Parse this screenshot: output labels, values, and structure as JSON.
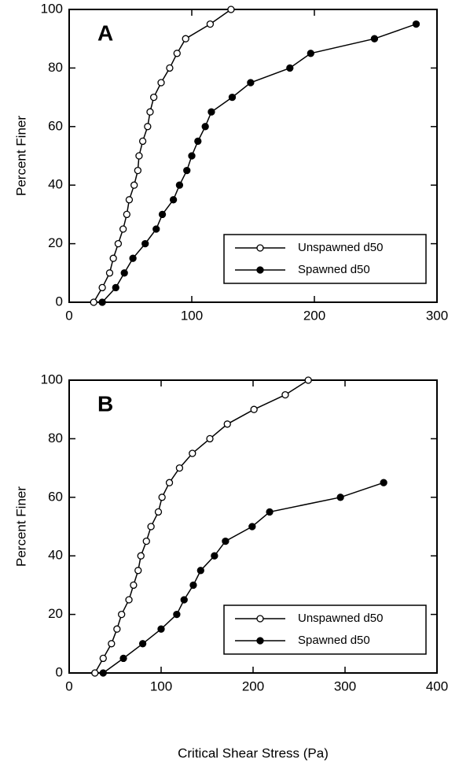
{
  "chart_data": [
    {
      "type": "line",
      "panel_label": "A",
      "ylabel": "Percent Finer",
      "xlim": [
        0,
        300
      ],
      "ylim": [
        0,
        100
      ],
      "xticks": [
        0,
        100,
        200,
        300
      ],
      "yticks": [
        0,
        20,
        40,
        60,
        80,
        100
      ],
      "series": [
        {
          "name": "Unspawned d50",
          "color": "#000000",
          "marker_fill": "#ffffff",
          "x": [
            20,
            27,
            33,
            36,
            40,
            44,
            47,
            49,
            53,
            56,
            57,
            60,
            64,
            66,
            69,
            75,
            82,
            88,
            95,
            115,
            132
          ],
          "values": [
            0,
            5,
            10,
            15,
            20,
            25,
            30,
            35,
            40,
            45,
            50,
            55,
            60,
            65,
            70,
            75,
            80,
            85,
            90,
            95,
            100
          ]
        },
        {
          "name": "Spawned d50",
          "color": "#000000",
          "marker_fill": "#000000",
          "x": [
            27,
            38,
            45,
            52,
            62,
            71,
            76,
            85,
            90,
            96,
            100,
            105,
            111,
            116,
            133,
            148,
            180,
            197,
            249,
            283
          ],
          "values": [
            0,
            5,
            10,
            15,
            20,
            25,
            30,
            35,
            40,
            45,
            50,
            55,
            60,
            65,
            70,
            75,
            80,
            85,
            90,
            95
          ]
        }
      ]
    },
    {
      "type": "line",
      "panel_label": "B",
      "ylabel": "Percent Finer",
      "xlabel": "Critical Shear Stress (Pa)",
      "xlim": [
        0,
        400
      ],
      "ylim": [
        0,
        100
      ],
      "xticks": [
        0,
        100,
        200,
        300,
        400
      ],
      "yticks": [
        0,
        20,
        40,
        60,
        80,
        100
      ],
      "series": [
        {
          "name": "Unspawned d50",
          "color": "#000000",
          "marker_fill": "#ffffff",
          "x": [
            28,
            37,
            46,
            52,
            57,
            65,
            70,
            75,
            78,
            84,
            89,
            97,
            101,
            109,
            120,
            134,
            153,
            172,
            201,
            235,
            260
          ],
          "values": [
            0,
            5,
            10,
            15,
            20,
            25,
            30,
            35,
            40,
            45,
            50,
            55,
            60,
            65,
            70,
            75,
            80,
            85,
            90,
            95,
            100
          ]
        },
        {
          "name": "Spawned d50",
          "color": "#000000",
          "marker_fill": "#000000",
          "x": [
            37,
            59,
            80,
            100,
            117,
            125,
            135,
            143,
            158,
            170,
            199,
            218,
            295,
            342
          ],
          "values": [
            0,
            5,
            10,
            15,
            20,
            25,
            30,
            35,
            40,
            45,
            50,
            55,
            60,
            65
          ]
        }
      ]
    }
  ]
}
